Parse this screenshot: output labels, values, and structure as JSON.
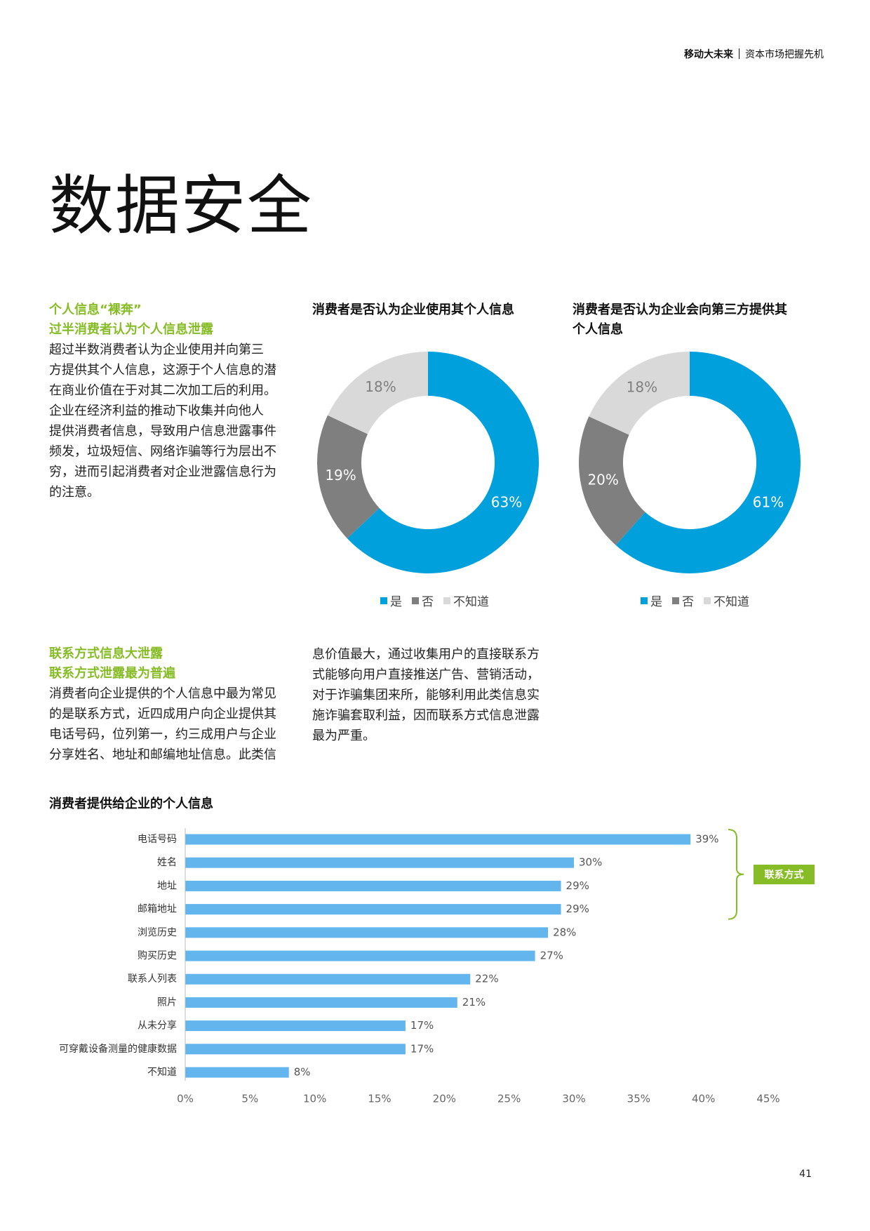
{
  "header": {
    "series_name": "移动大未来",
    "subtitle": "资本市场把握先机"
  },
  "page_title": "数据安全",
  "section1": {
    "title_line1": "个人信息“裸奔”",
    "title_line2": "过半消费者认为个人信息泄露",
    "body_lines": [
      "超过半数消费者认为企业使用并向第三",
      "方提供其个人信息，这源于个人信息的潜",
      "在商业价值在于对其二次加工后的利用。",
      "企业在经济利益的推动下收集并向他人",
      "提供消费者信息，导致用户信息泄露事件",
      "频发，垃圾短信、网络诈骗等行为层出不",
      "穷，进而引起消费者对企业泄露信息行为",
      "的注意。"
    ]
  },
  "section2": {
    "title_line1": "联系方式信息大泄露",
    "title_line2": "联系方式泄露最为普遍",
    "body_col1": [
      "消费者向企业提供的个人信息中最为常见",
      "的是联系方式，近四成用户向企业提供其",
      "电话号码，位列第一，约三成用户与企业",
      "分享姓名、地址和邮编地址信息。此类信"
    ],
    "body_col2": [
      "息价值最大，通过收集用户的直接联系方",
      "式能够向用户直接推送广告、营销活动，",
      "对于诈骗集团来所，能够利用此类信息实",
      "施诈骗套取利益，因而联系方式信息泄露",
      "最为严重。"
    ]
  },
  "legend": {
    "yes": "是",
    "no": "否",
    "unknown": "不知道"
  },
  "colors": {
    "yes": "#00a0dc",
    "no": "#7f7f7f",
    "unknown": "#d9d9d9",
    "bar": "#62b5ed",
    "accent_green": "#86bc25"
  },
  "bar_note": {
    "bracket_label": "联系方式"
  },
  "page_number": "41",
  "chart_data": [
    {
      "type": "pie",
      "title": "消费者是否认为企业使用其个人信息",
      "categories": [
        "是",
        "否",
        "不知道"
      ],
      "values": [
        63,
        19,
        18
      ],
      "labels": [
        "63%",
        "19%",
        "18%"
      ]
    },
    {
      "type": "pie",
      "title": "消费者是否认为企业会向第三方提供其个人信息",
      "title_lines": [
        "消费者是否认为企业会向第三方提供其",
        "个人信息"
      ],
      "categories": [
        "是",
        "否",
        "不知道"
      ],
      "values": [
        61,
        20,
        18
      ],
      "labels": [
        "61%",
        "20%",
        "18%"
      ]
    },
    {
      "type": "bar",
      "orientation": "horizontal",
      "title": "消费者提供给企业的个人信息",
      "categories": [
        "电话号码",
        "姓名",
        "地址",
        "邮箱地址",
        "浏览历史",
        "购买历史",
        "联系人列表",
        "照片",
        "从未分享",
        "可穿戴设备测量的健康数据",
        "不知道"
      ],
      "values": [
        39,
        30,
        29,
        29,
        28,
        27,
        22,
        21,
        17,
        17,
        8
      ],
      "value_labels": [
        "39%",
        "30%",
        "29%",
        "29%",
        "28%",
        "27%",
        "22%",
        "21%",
        "17%",
        "17%",
        "8%"
      ],
      "xlim": [
        0,
        45
      ],
      "xticks": [
        "0%",
        "5%",
        "10%",
        "15%",
        "20%",
        "25%",
        "30%",
        "35%",
        "40%",
        "45%"
      ],
      "grid": false
    }
  ]
}
